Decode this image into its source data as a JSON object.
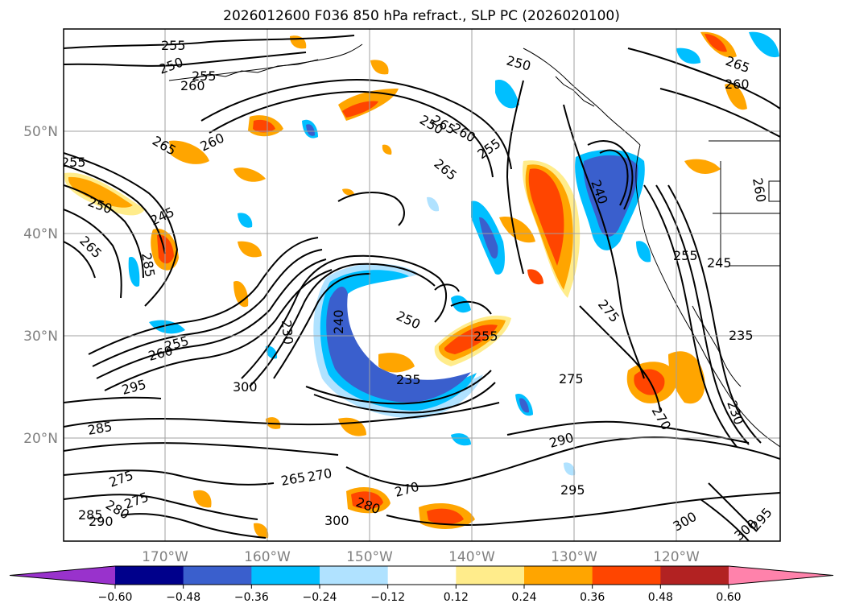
{
  "title": "2026012600 F036 850 hPa refract., SLP PC (2026020100)",
  "axes": {
    "lat_labels": [
      "50°N",
      "40°N",
      "30°N",
      "20°N"
    ],
    "lon_labels": [
      "170°W",
      "160°W",
      "150°W",
      "140°W",
      "130°W",
      "120°W"
    ]
  },
  "colorbar": {
    "ticks": [
      "−0.60",
      "−0.48",
      "−0.36",
      "−0.24",
      "−0.12",
      "0.12",
      "0.24",
      "0.36",
      "0.48",
      "0.60"
    ],
    "colors": [
      "#9932cc",
      "#00008b",
      "#3a5fcd",
      "#00bfff",
      "#b0e2ff",
      "#ffffff",
      "#ffec8b",
      "#ffa500",
      "#ff4500",
      "#b22222",
      "#ff82ab"
    ]
  },
  "contour_labels": [
    "255",
    "250",
    "255",
    "260",
    "265",
    "260",
    "255",
    "250",
    "245",
    "265",
    "285",
    "260",
    "255",
    "265",
    "250",
    "260",
    "255",
    "250",
    "265",
    "240",
    "230",
    "250",
    "255",
    "235",
    "275",
    "265",
    "245",
    "255",
    "260",
    "235",
    "230",
    "275",
    "300",
    "295",
    "285",
    "275",
    "270",
    "265",
    "270",
    "280",
    "270",
    "300",
    "290",
    "295",
    "300",
    "300",
    "295",
    "280",
    "275",
    "285",
    "290",
    "240",
    "260"
  ]
}
